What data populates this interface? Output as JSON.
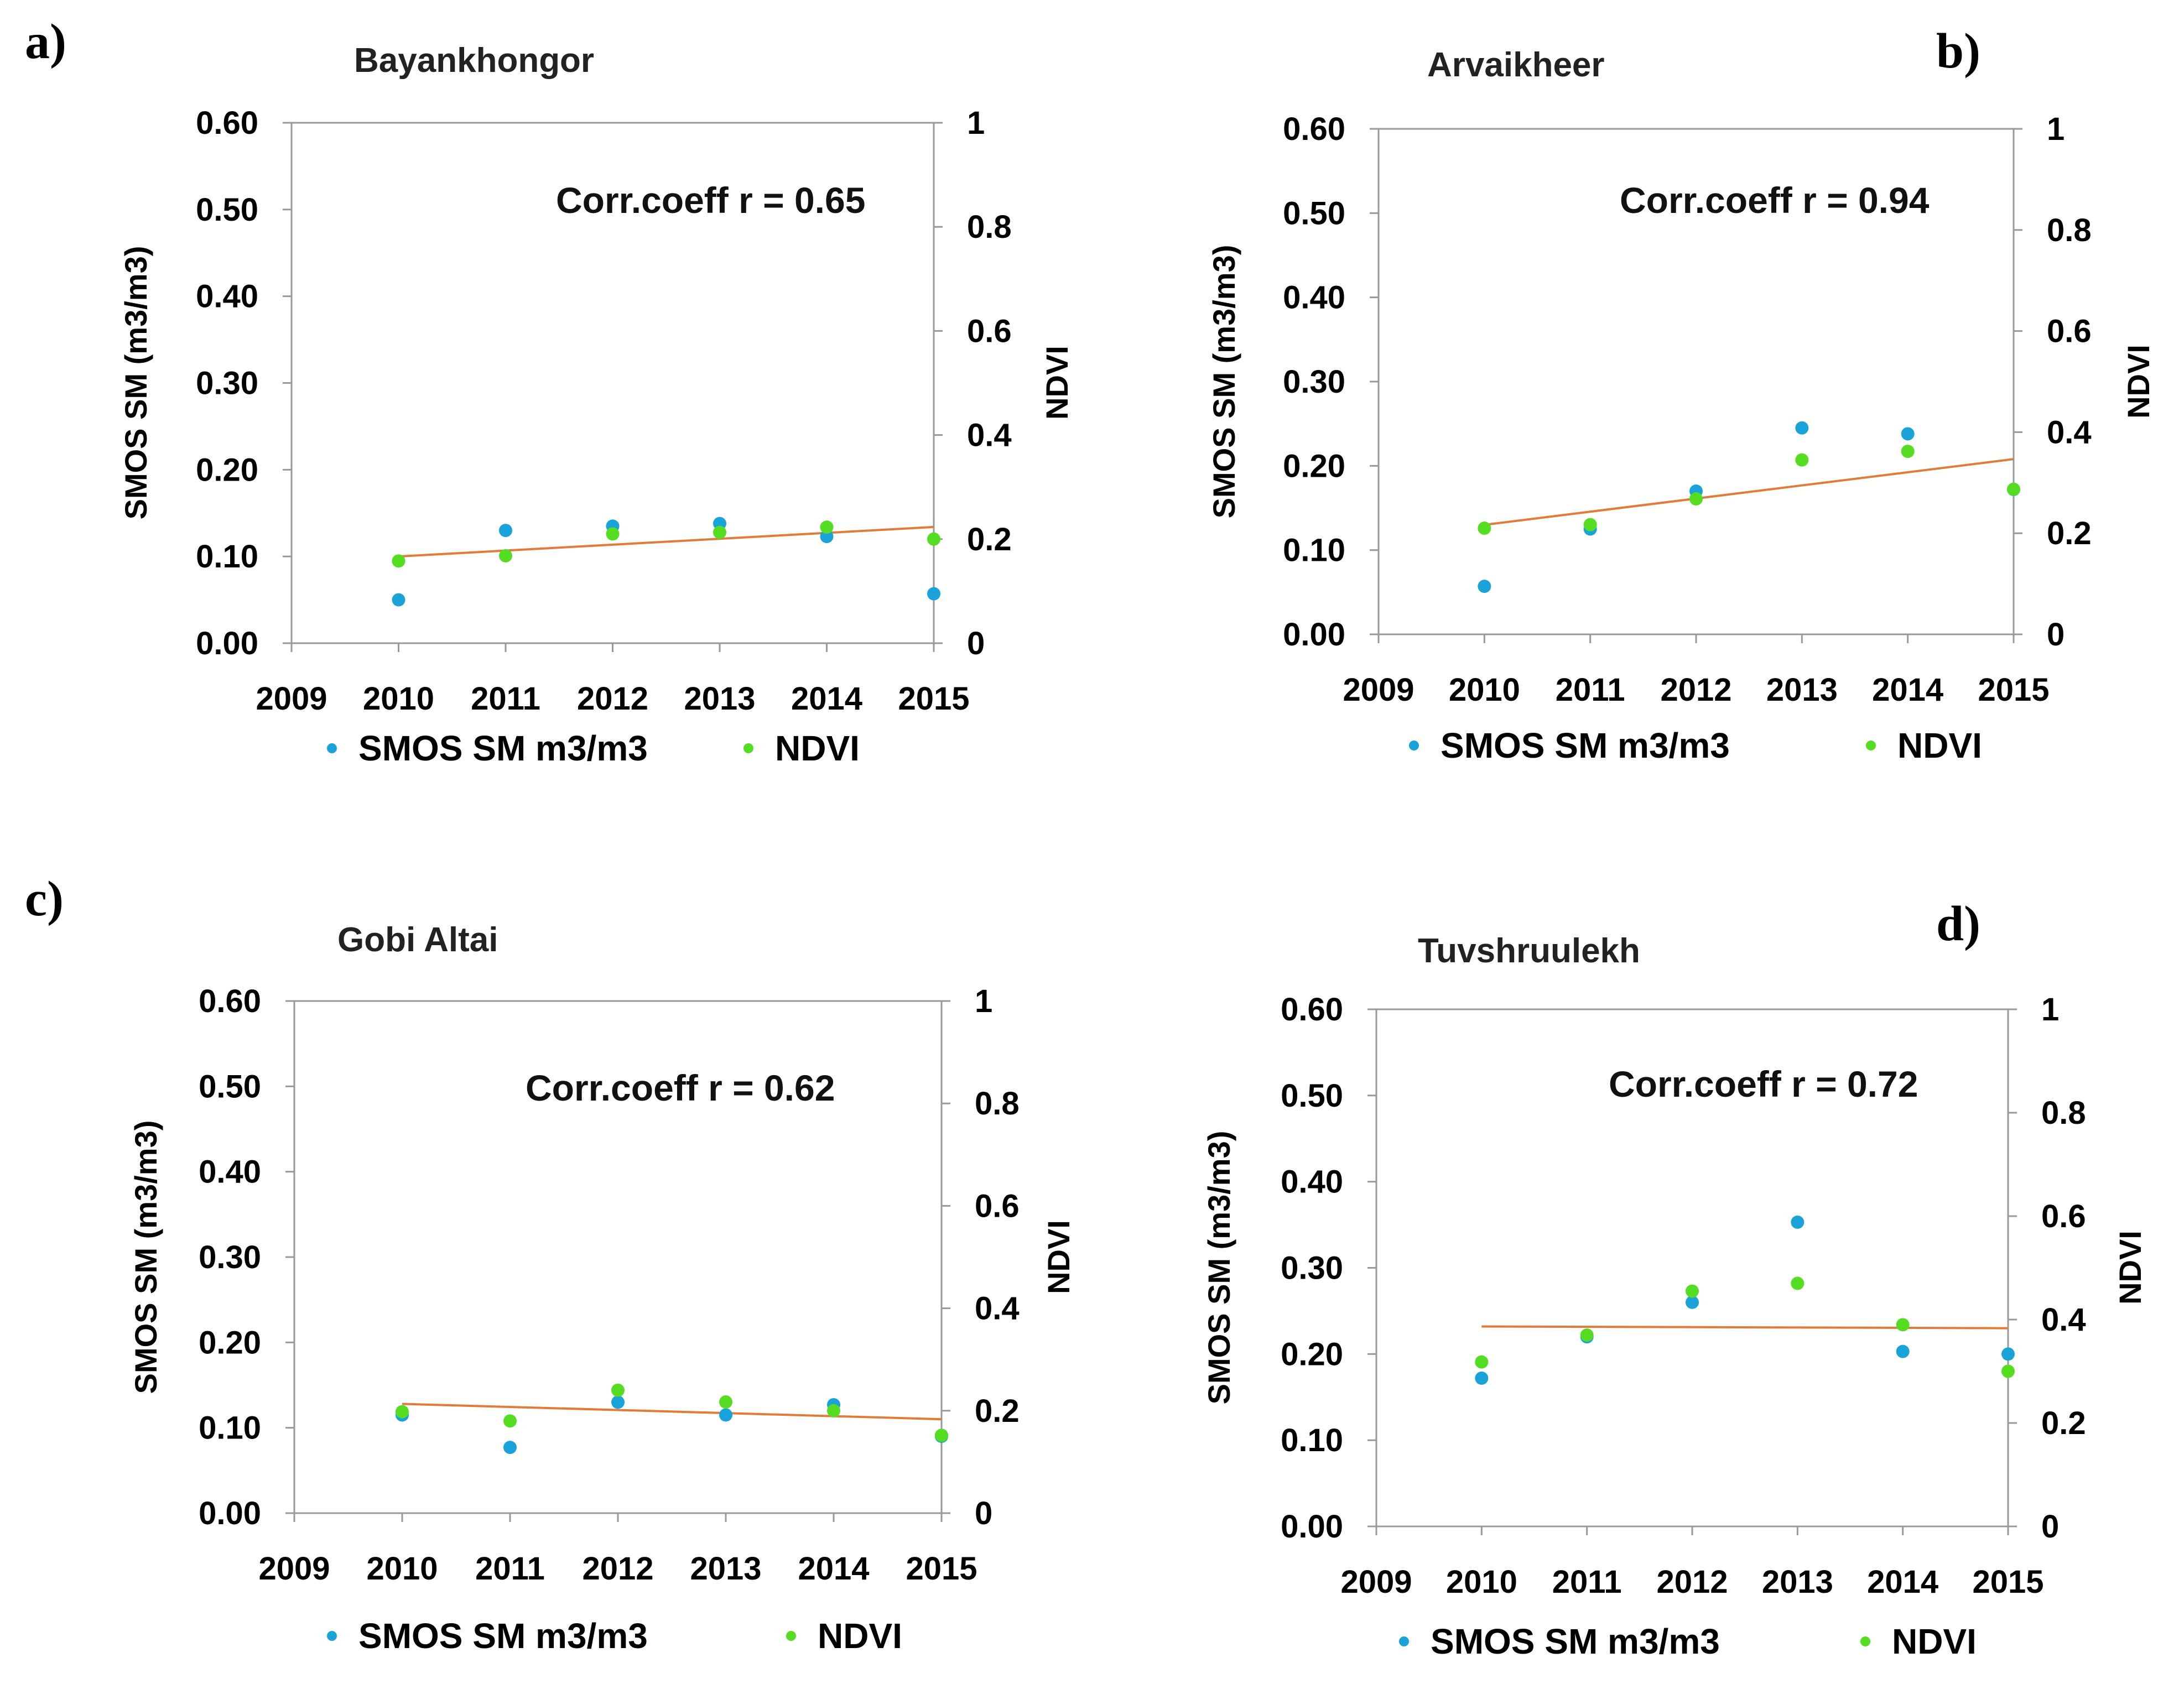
{
  "chart_data": [
    {
      "type": "scatter",
      "panel_label": "a)",
      "title": "Bayankhongor",
      "annotation": "Corr.coeff r = 0.65",
      "ylabel": "SMOS SM (m3/m3)",
      "y2label": "NDVI",
      "xlim": [
        2009,
        2015
      ],
      "ylim": [
        0,
        0.6
      ],
      "y2lim": [
        0,
        1
      ],
      "x_ticks": [
        "2009",
        "2010",
        "2011",
        "2012",
        "2013",
        "2014",
        "2015"
      ],
      "y_ticks": [
        "0.00",
        "0.10",
        "0.20",
        "0.30",
        "0.40",
        "0.50",
        "0.60"
      ],
      "y2_ticks": [
        "0",
        "0.2",
        "0.4",
        "0.6",
        "0.8",
        "1"
      ],
      "series": [
        {
          "name": "SMOS SM m3/m3",
          "axis": "left",
          "color": "#1aa3d9",
          "x": [
            2010,
            2011,
            2012,
            2013,
            2014,
            2015
          ],
          "values": [
            0.05,
            0.13,
            0.135,
            0.138,
            0.123,
            0.057
          ]
        },
        {
          "name": "NDVI",
          "axis": "right",
          "color": "#55dd22",
          "x": [
            2010,
            2011,
            2012,
            2013,
            2014,
            2015
          ],
          "values": [
            0.158,
            0.168,
            0.21,
            0.213,
            0.223,
            0.2
          ]
        }
      ],
      "trendline": {
        "color": "#e07b39",
        "axis": "left",
        "x": [
          2010,
          2015
        ],
        "y": [
          0.1,
          0.134
        ]
      },
      "legend": [
        "SMOS SM m3/m3",
        "NDVI"
      ]
    },
    {
      "type": "scatter",
      "panel_label": "b)",
      "title": "Arvaikheer",
      "annotation": "Corr.coeff r = 0.94",
      "ylabel": "SMOS SM (m3/m3)",
      "y2label": "NDVI",
      "xlim": [
        2009,
        2015
      ],
      "ylim": [
        0,
        0.6
      ],
      "y2lim": [
        0,
        1
      ],
      "x_ticks": [
        "2009",
        "2010",
        "2011",
        "2012",
        "2013",
        "2014",
        "2015"
      ],
      "y_ticks": [
        "0.00",
        "0.10",
        "0.20",
        "0.30",
        "0.40",
        "0.50",
        "0.60"
      ],
      "y2_ticks": [
        "0",
        "0.2",
        "0.4",
        "0.6",
        "0.8",
        "1"
      ],
      "series": [
        {
          "name": "SMOS SM m3/m3",
          "axis": "left",
          "color": "#1aa3d9",
          "x": [
            2010,
            2011,
            2012,
            2013,
            2014,
            2015
          ],
          "values": [
            0.057,
            0.125,
            0.17,
            0.245,
            0.238,
            0.172
          ]
        },
        {
          "name": "NDVI",
          "axis": "right",
          "color": "#55dd22",
          "x": [
            2010,
            2011,
            2012,
            2013,
            2014,
            2015
          ],
          "values": [
            0.21,
            0.217,
            0.268,
            0.345,
            0.362,
            0.287
          ]
        }
      ],
      "trendline": {
        "color": "#e07b39",
        "axis": "left",
        "x": [
          2010,
          2015
        ],
        "y": [
          0.13,
          0.208
        ]
      },
      "legend": [
        "SMOS SM m3/m3",
        "NDVI"
      ]
    },
    {
      "type": "scatter",
      "panel_label": "c)",
      "title": "Gobi Altai",
      "annotation": "Corr.coeff r = 0.62",
      "ylabel": "SMOS SM (m3/m3)",
      "y2label": "NDVI",
      "xlim": [
        2009,
        2015
      ],
      "ylim": [
        0,
        0.6
      ],
      "y2lim": [
        0,
        1
      ],
      "x_ticks": [
        "2009",
        "2010",
        "2011",
        "2012",
        "2013",
        "2014",
        "2015"
      ],
      "y_ticks": [
        "0.00",
        "0.10",
        "0.20",
        "0.30",
        "0.40",
        "0.50",
        "0.60"
      ],
      "y2_ticks": [
        "0",
        "0.2",
        "0.4",
        "0.6",
        "0.8",
        "1"
      ],
      "series": [
        {
          "name": "SMOS SM m3/m3",
          "axis": "left",
          "color": "#1aa3d9",
          "x": [
            2010,
            2011,
            2012,
            2013,
            2014,
            2015
          ],
          "values": [
            0.115,
            0.077,
            0.13,
            0.115,
            0.127,
            0.09
          ]
        },
        {
          "name": "NDVI",
          "axis": "right",
          "color": "#55dd22",
          "x": [
            2010,
            2011,
            2012,
            2013,
            2014,
            2015
          ],
          "values": [
            0.198,
            0.18,
            0.24,
            0.217,
            0.2,
            0.152
          ]
        }
      ],
      "trendline": {
        "color": "#e07b39",
        "axis": "left",
        "x": [
          2010,
          2015
        ],
        "y": [
          0.128,
          0.11
        ]
      },
      "legend": [
        "SMOS SM m3/m3",
        "NDVI"
      ]
    },
    {
      "type": "scatter",
      "panel_label": "d)",
      "title": "Tuvshruulekh",
      "annotation": "Corr.coeff r = 0.72",
      "ylabel": "SMOS SM  (m3/m3)",
      "y2label": "NDVI",
      "xlim": [
        2009,
        2015
      ],
      "ylim": [
        0,
        0.6
      ],
      "y2lim": [
        0,
        1
      ],
      "x_ticks": [
        "2009",
        "2010",
        "2011",
        "2012",
        "2013",
        "2014",
        "2015"
      ],
      "y_ticks": [
        "0.00",
        "0.10",
        "0.20",
        "0.30",
        "0.40",
        "0.50",
        "0.60"
      ],
      "y2_ticks": [
        "0",
        "0.2",
        "0.4",
        "0.6",
        "0.8",
        "1"
      ],
      "series": [
        {
          "name": "SMOS SM m3/m3",
          "axis": "left",
          "color": "#1aa3d9",
          "x": [
            2010,
            2011,
            2012,
            2013,
            2014,
            2015
          ],
          "values": [
            0.172,
            0.22,
            0.26,
            0.353,
            0.203,
            0.2
          ]
        },
        {
          "name": "NDVI",
          "axis": "right",
          "color": "#55dd22",
          "x": [
            2010,
            2011,
            2012,
            2013,
            2014,
            2015
          ],
          "values": [
            0.318,
            0.37,
            0.455,
            0.47,
            0.39,
            0.3
          ]
        }
      ],
      "trendline": {
        "color": "#e07b39",
        "axis": "left",
        "x": [
          2010,
          2015
        ],
        "y": [
          0.232,
          0.23
        ]
      },
      "legend": [
        "SMOS SM m3/m3",
        "NDVI"
      ]
    }
  ]
}
